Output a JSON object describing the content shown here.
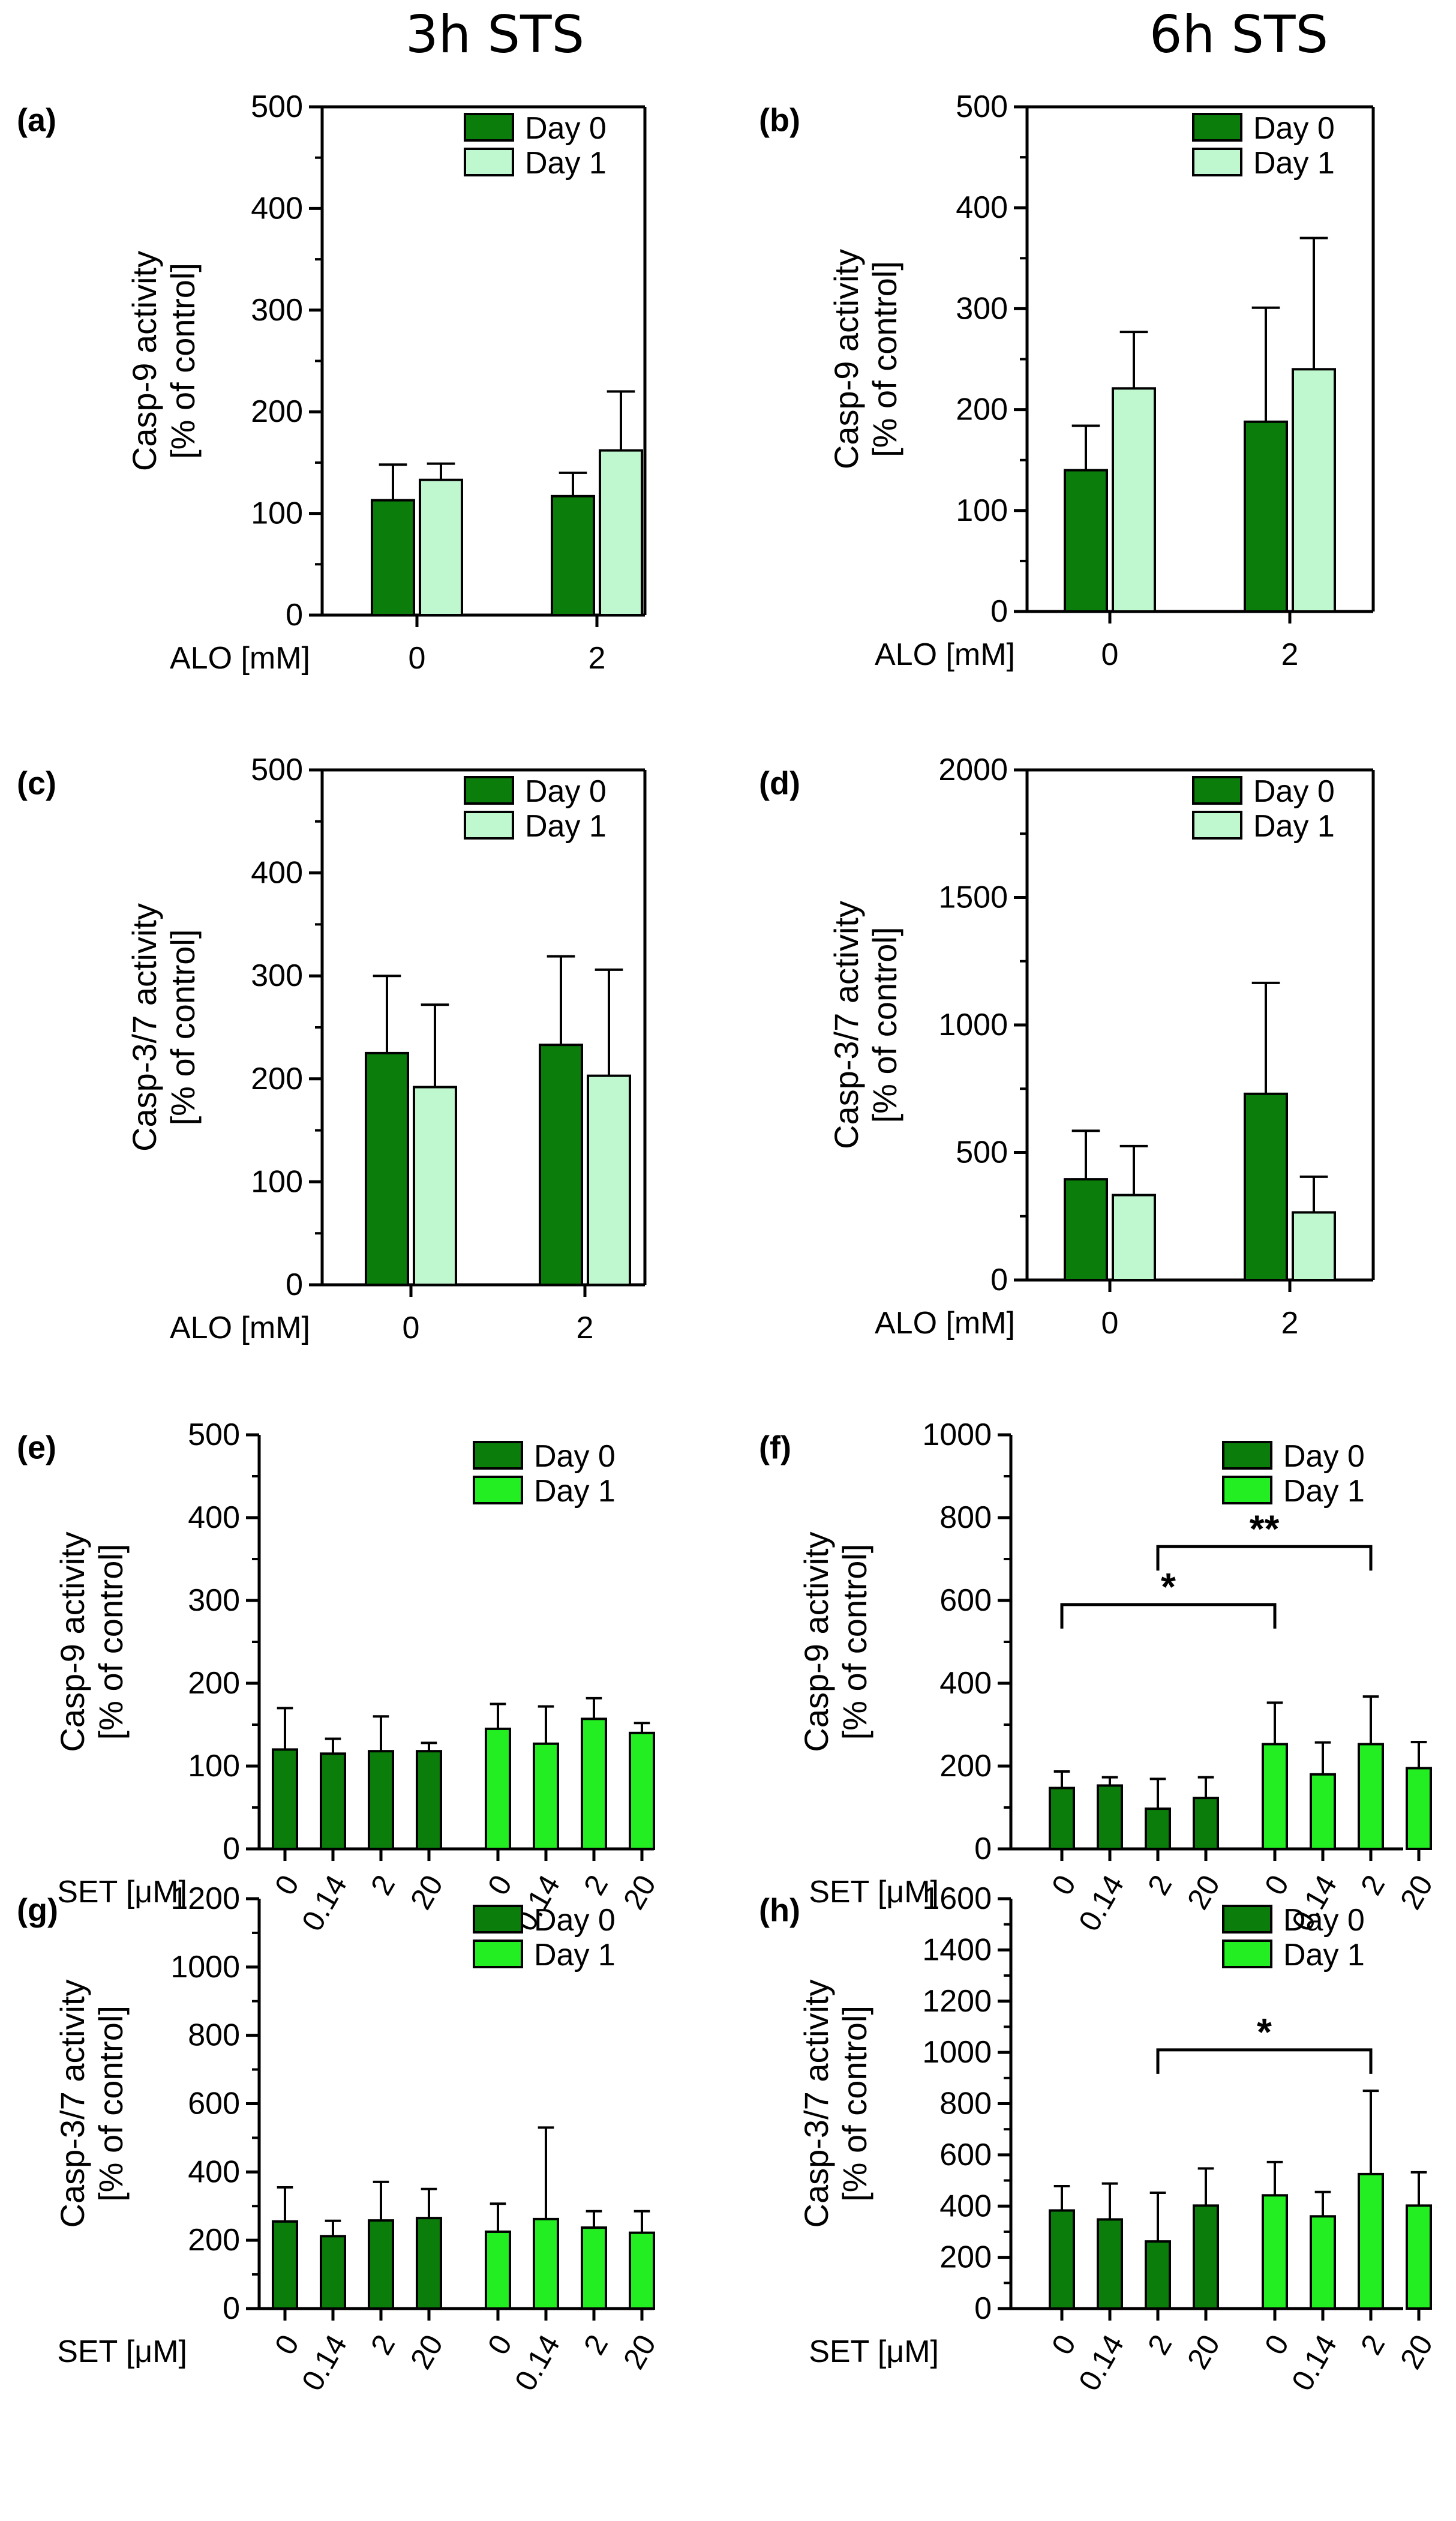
{
  "column_titles": [
    "3h STS",
    "6h STS"
  ],
  "colors": {
    "day0": "#0a7d0a",
    "day1_light": "#bff7cf",
    "day1_bright": "#22ee22",
    "axis": "#000000"
  },
  "chart_data": [
    {
      "id": "a",
      "panel_label": "(a)",
      "type": "bar",
      "ylabel": [
        "Casp-9 activity",
        "[% of control]"
      ],
      "ylim": [
        0,
        500
      ],
      "yticks": [
        0,
        100,
        200,
        300,
        400,
        500
      ],
      "xlabel": "ALO [mM]",
      "categories": [
        "0",
        "2"
      ],
      "series": [
        {
          "name": "Day 0",
          "values": [
            113,
            117
          ],
          "errors": [
            35,
            23
          ]
        },
        {
          "name": "Day 1",
          "values": [
            133,
            162
          ],
          "errors": [
            16,
            58
          ]
        }
      ],
      "legend": "top-right",
      "day1_style": "light",
      "brackets": []
    },
    {
      "id": "b",
      "panel_label": "(b)",
      "type": "bar",
      "ylabel": [
        "Casp-9 activity",
        "[% of control]"
      ],
      "ylim": [
        0,
        500
      ],
      "yticks": [
        0,
        100,
        200,
        300,
        400,
        500
      ],
      "xlabel": "ALO [mM]",
      "categories": [
        "0",
        "2"
      ],
      "series": [
        {
          "name": "Day 0",
          "values": [
            140,
            188
          ],
          "errors": [
            44,
            113
          ]
        },
        {
          "name": "Day 1",
          "values": [
            221,
            240
          ],
          "errors": [
            56,
            130
          ]
        }
      ],
      "legend": "top-right",
      "day1_style": "light",
      "brackets": []
    },
    {
      "id": "c",
      "panel_label": "(c)",
      "type": "bar",
      "ylabel": [
        "Casp-3/7 activity",
        "[% of control]"
      ],
      "ylim": [
        0,
        500
      ],
      "yticks": [
        0,
        100,
        200,
        300,
        400,
        500
      ],
      "xlabel": "ALO [mM]",
      "categories": [
        "0",
        "2"
      ],
      "series": [
        {
          "name": "Day 0",
          "values": [
            225,
            233
          ],
          "errors": [
            75,
            86
          ]
        },
        {
          "name": "Day 1",
          "values": [
            192,
            203
          ],
          "errors": [
            80,
            103
          ]
        }
      ],
      "legend": "top-right",
      "day1_style": "light",
      "brackets": []
    },
    {
      "id": "d",
      "panel_label": "(d)",
      "type": "bar",
      "ylabel": [
        "Casp-3/7 activity",
        "[% of control]"
      ],
      "ylim": [
        0,
        2000
      ],
      "yticks": [
        0,
        500,
        1000,
        1500,
        2000
      ],
      "xlabel": "ALO [mM]",
      "categories": [
        "0",
        "2"
      ],
      "series": [
        {
          "name": "Day 0",
          "values": [
            395,
            730
          ],
          "errors": [
            190,
            435
          ]
        },
        {
          "name": "Day 1",
          "values": [
            333,
            265
          ],
          "errors": [
            192,
            140
          ]
        }
      ],
      "legend": "top-right",
      "day1_style": "light",
      "brackets": []
    },
    {
      "id": "e",
      "panel_label": "(e)",
      "type": "bar",
      "ylabel": [
        "Casp-9 activity",
        "[% of control]"
      ],
      "ylim": [
        0,
        500
      ],
      "yticks": [
        0,
        100,
        200,
        300,
        400,
        500
      ],
      "xlabel": "SET [μM]",
      "categories": [
        "0",
        "0.14",
        "2",
        "20"
      ],
      "series": [
        {
          "name": "Day 0",
          "values": [
            120,
            115,
            118,
            118
          ],
          "errors": [
            50,
            18,
            42,
            10
          ]
        },
        {
          "name": "Day 1",
          "values": [
            145,
            127,
            157,
            140
          ],
          "errors": [
            30,
            45,
            25,
            12
          ]
        }
      ],
      "legend": "top-right",
      "day1_style": "bright",
      "brackets": []
    },
    {
      "id": "f",
      "panel_label": "(f)",
      "type": "bar",
      "ylabel": [
        "Casp-9 activity",
        "[% of control]"
      ],
      "ylim": [
        0,
        1000
      ],
      "yticks": [
        0,
        200,
        400,
        600,
        800,
        1000
      ],
      "xlabel": "SET [μM]",
      "categories": [
        "0",
        "0.14",
        "2",
        "20"
      ],
      "series": [
        {
          "name": "Day 0",
          "values": [
            147,
            153,
            97,
            123
          ],
          "errors": [
            40,
            20,
            72,
            50
          ]
        },
        {
          "name": "Day 1",
          "values": [
            253,
            180,
            253,
            195
          ],
          "errors": [
            100,
            77,
            115,
            63
          ]
        }
      ],
      "legend": "top-right",
      "day1_style": "bright",
      "brackets": [
        {
          "from": [
            "Day 0",
            "0"
          ],
          "to": [
            "Day 1",
            "0"
          ],
          "level": 590,
          "label": "*"
        },
        {
          "from": [
            "Day 0",
            "2"
          ],
          "to": [
            "Day 1",
            "2"
          ],
          "level": 730,
          "label": "**"
        }
      ]
    },
    {
      "id": "g",
      "panel_label": "(g)",
      "type": "bar",
      "ylabel": [
        "Casp-3/7 activity",
        "[% of control]"
      ],
      "ylim": [
        0,
        1200
      ],
      "yticks": [
        0,
        200,
        400,
        600,
        800,
        1000,
        1200
      ],
      "xlabel": "SET [μM]",
      "categories": [
        "0",
        "0.14",
        "2",
        "20"
      ],
      "series": [
        {
          "name": "Day 0",
          "values": [
            255,
            212,
            258,
            265
          ],
          "errors": [
            100,
            45,
            113,
            85
          ]
        },
        {
          "name": "Day 1",
          "values": [
            225,
            262,
            237,
            222
          ],
          "errors": [
            82,
            268,
            48,
            63
          ]
        }
      ],
      "legend": "top-right",
      "day1_style": "bright",
      "brackets": []
    },
    {
      "id": "h",
      "panel_label": "(h)",
      "type": "bar",
      "ylabel": [
        "Casp-3/7 activity",
        "[% of control]"
      ],
      "ylim": [
        0,
        1600
      ],
      "yticks": [
        0,
        200,
        400,
        600,
        800,
        1000,
        1200,
        1400,
        1600
      ],
      "xlabel": "SET [μM]",
      "categories": [
        "0",
        "0.14",
        "2",
        "20"
      ],
      "series": [
        {
          "name": "Day 0",
          "values": [
            383,
            348,
            262,
            402
          ],
          "errors": [
            95,
            140,
            190,
            145
          ]
        },
        {
          "name": "Day 1",
          "values": [
            442,
            360,
            525,
            402
          ],
          "errors": [
            130,
            95,
            325,
            130
          ]
        }
      ],
      "legend": "top-right",
      "day1_style": "bright",
      "brackets": [
        {
          "from": [
            "Day 0",
            "2"
          ],
          "to": [
            "Day 1",
            "2"
          ],
          "level": 1010,
          "label": "*"
        }
      ]
    }
  ]
}
